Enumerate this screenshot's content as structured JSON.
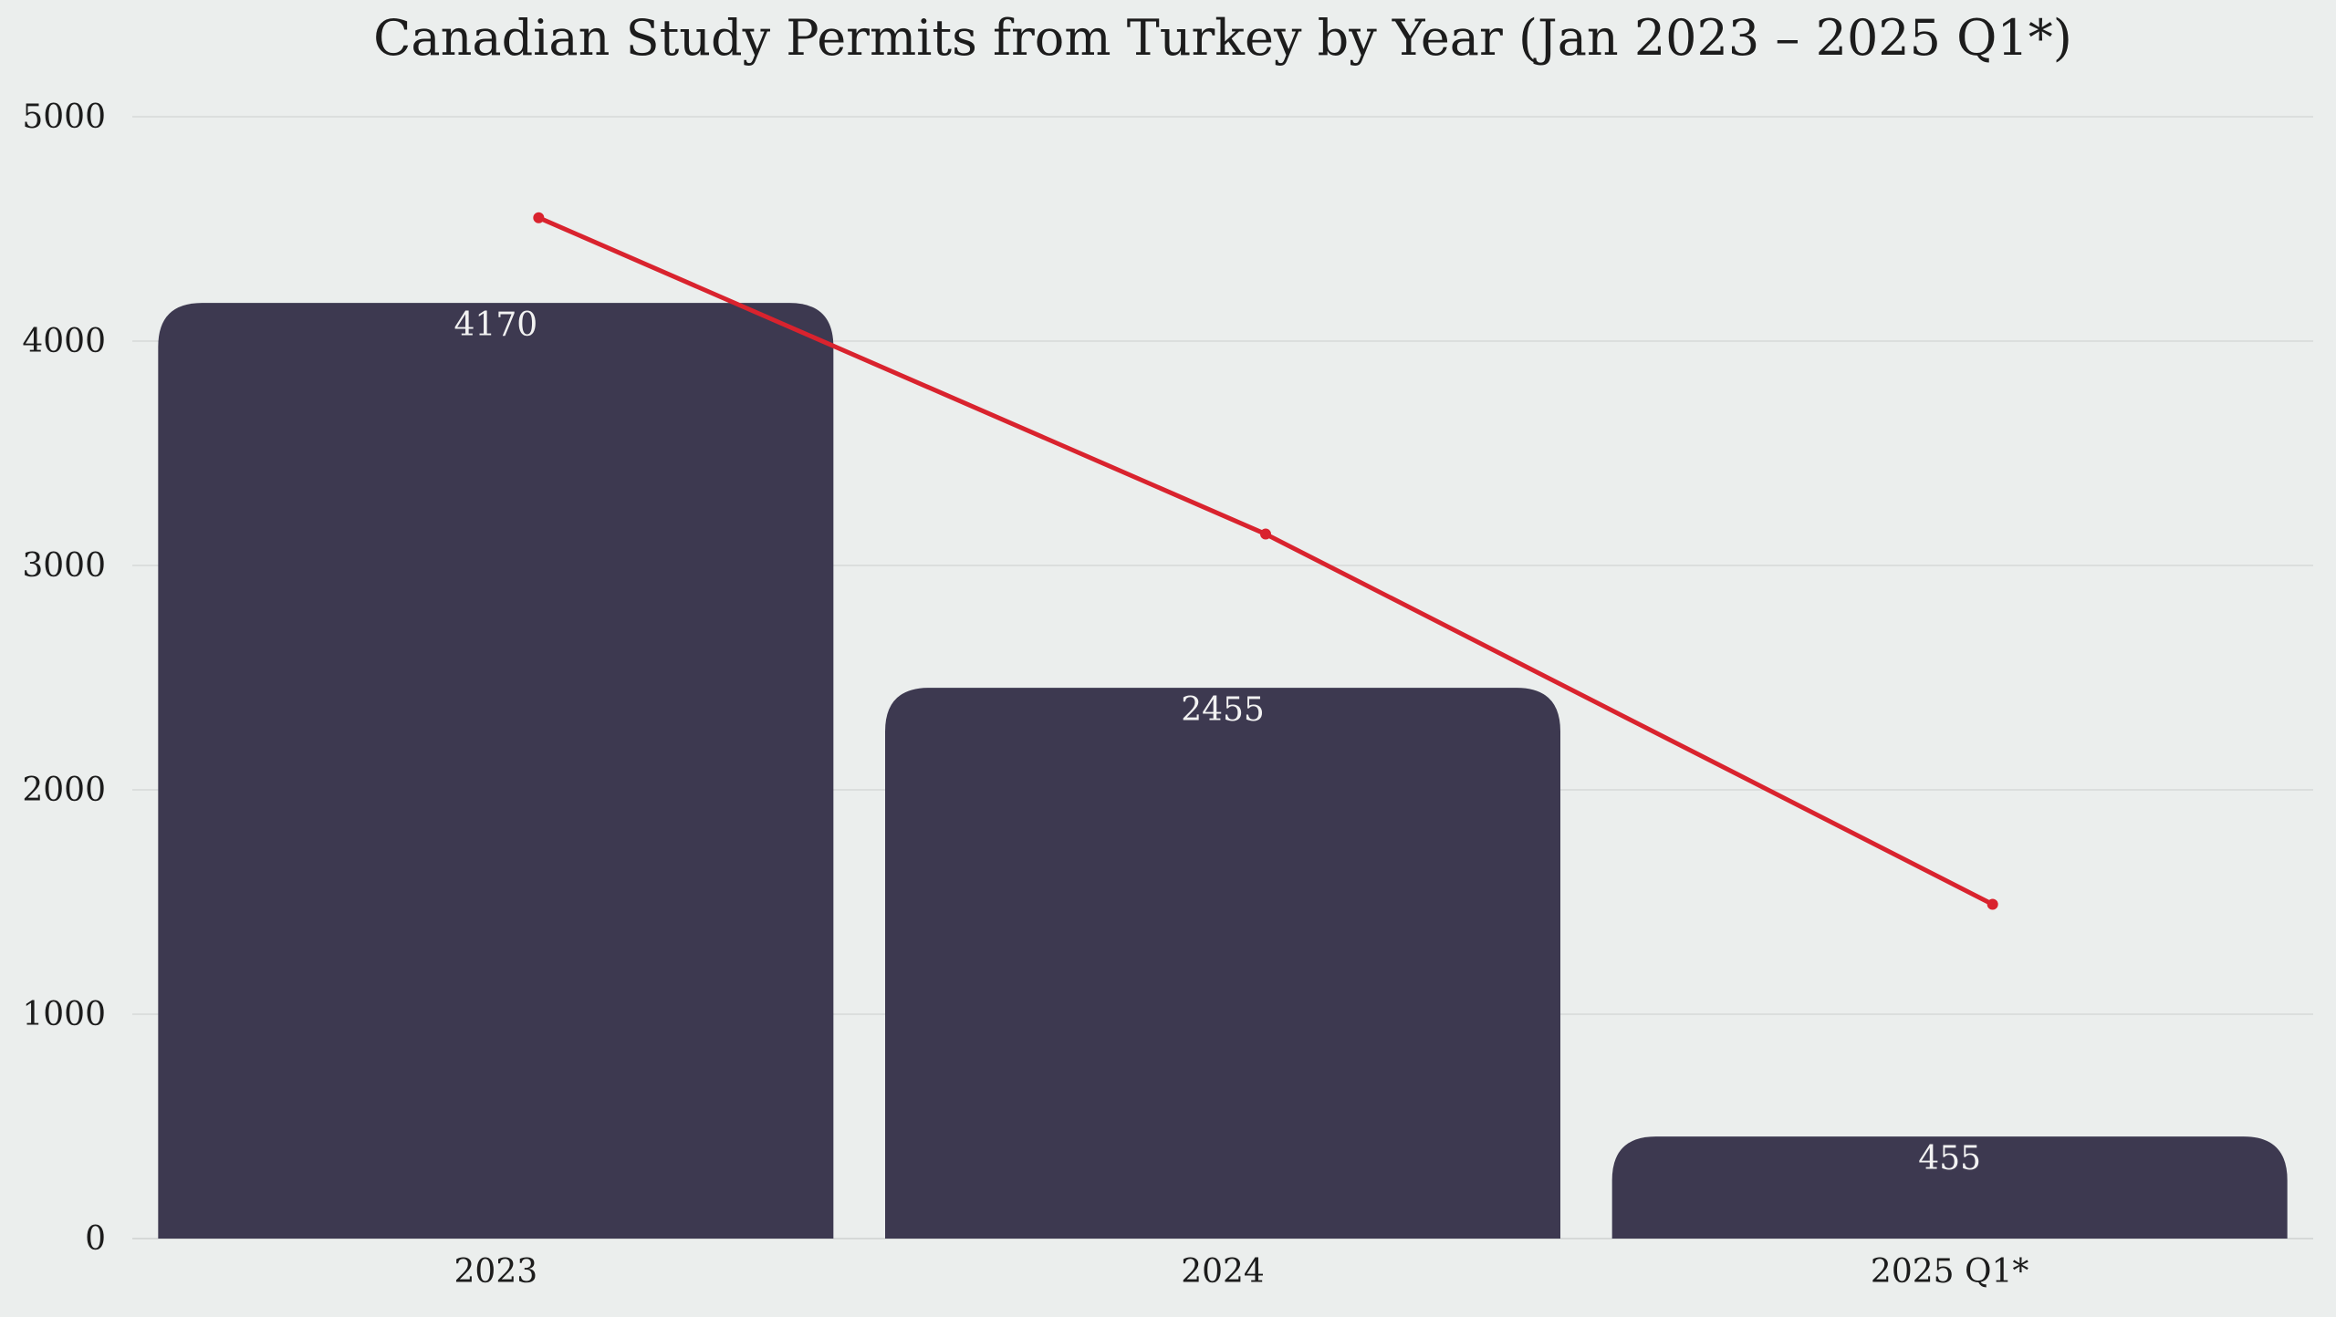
{
  "chart_data": {
    "type": "bar",
    "title": "Canadian Study Permits from Turkey by Year (Jan 2023 – 2025 Q1*)",
    "categories": [
      "2023",
      "2024",
      "2025 Q1*"
    ],
    "values": [
      4170,
      2455,
      455
    ],
    "value_labels": [
      "4170",
      "2455",
      "455"
    ],
    "trend_line": {
      "values": [
        4550,
        3140,
        1490
      ],
      "color": "#d9232e"
    },
    "xlabel": "",
    "ylabel": "",
    "ylim": [
      0,
      5000
    ],
    "yticks": [
      0,
      1000,
      2000,
      3000,
      4000,
      5000
    ],
    "ytick_labels": [
      "0",
      "1000",
      "2000",
      "3000",
      "4000",
      "5000"
    ],
    "grid": true,
    "legend": "none",
    "colors": {
      "bar": "#3d3950",
      "trend": "#d9232e",
      "background": "#ebeeed",
      "grid": "#d6d9d8"
    }
  }
}
